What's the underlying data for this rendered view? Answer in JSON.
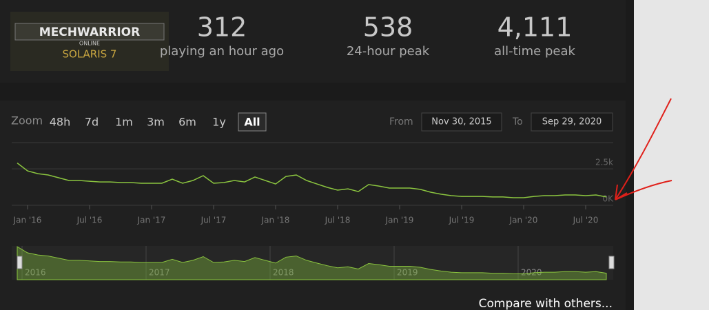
{
  "header": {
    "logo": {
      "line1": "MECHWARRIOR",
      "line2": "ONLINE",
      "line3": "SOLARIS 7"
    },
    "stats": [
      {
        "value": "312",
        "label": "playing an hour ago"
      },
      {
        "value": "538",
        "label": "24-hour peak"
      },
      {
        "value": "4,111",
        "label": "all-time peak"
      }
    ]
  },
  "controls": {
    "zoom_label": "Zoom",
    "zoom_buttons": [
      "48h",
      "7d",
      "1m",
      "3m",
      "6m",
      "1y",
      "All"
    ],
    "selected": "All",
    "from_label": "From",
    "from_date": "Nov 30, 2015",
    "to_label": "To",
    "to_date": "Sep 29, 2020"
  },
  "chart_data": {
    "type": "line",
    "color": "#8bc53f",
    "x": [
      "2015-12",
      "2016-01",
      "2016-02",
      "2016-03",
      "2016-04",
      "2016-05",
      "2016-06",
      "2016-07",
      "2016-08",
      "2016-09",
      "2016-10",
      "2016-11",
      "2016-12",
      "2017-01",
      "2017-02",
      "2017-03",
      "2017-04",
      "2017-05",
      "2017-06",
      "2017-07",
      "2017-08",
      "2017-09",
      "2017-10",
      "2017-11",
      "2017-12",
      "2018-01",
      "2018-02",
      "2018-03",
      "2018-04",
      "2018-05",
      "2018-06",
      "2018-07",
      "2018-08",
      "2018-09",
      "2018-10",
      "2018-11",
      "2018-12",
      "2019-01",
      "2019-02",
      "2019-03",
      "2019-04",
      "2019-05",
      "2019-06",
      "2019-07",
      "2019-08",
      "2019-09",
      "2019-10",
      "2019-11",
      "2019-12",
      "2020-01",
      "2020-02",
      "2020-03",
      "2020-04",
      "2020-05",
      "2020-06",
      "2020-07",
      "2020-08",
      "2020-09"
    ],
    "values": [
      2900,
      2360,
      2170,
      2080,
      1890,
      1700,
      1700,
      1650,
      1600,
      1600,
      1560,
      1560,
      1510,
      1510,
      1510,
      1790,
      1510,
      1700,
      2030,
      1510,
      1560,
      1700,
      1600,
      1940,
      1700,
      1460,
      1980,
      2080,
      1700,
      1460,
      1230,
      1040,
      1130,
      940,
      1420,
      1320,
      1180,
      1180,
      1180,
      1090,
      900,
      760,
      660,
      610,
      610,
      610,
      570,
      570,
      520,
      520,
      610,
      660,
      660,
      710,
      710,
      660,
      710,
      570
    ],
    "xlim": [
      "2015-12",
      "2020-09"
    ],
    "xticks": [
      {
        "value": "2016-01",
        "label": "Jan '16"
      },
      {
        "value": "2016-07",
        "label": "Jul '16"
      },
      {
        "value": "2017-01",
        "label": "Jan '17"
      },
      {
        "value": "2017-07",
        "label": "Jul '17"
      },
      {
        "value": "2018-01",
        "label": "Jan '18"
      },
      {
        "value": "2018-07",
        "label": "Jul '18"
      },
      {
        "value": "2019-01",
        "label": "Jan '19"
      },
      {
        "value": "2019-07",
        "label": "Jul '19"
      },
      {
        "value": "2020-01",
        "label": "Jan '20"
      },
      {
        "value": "2020-07",
        "label": "Jul '20"
      }
    ],
    "ylim": [
      0,
      4300
    ],
    "yticks": [
      {
        "value": 0,
        "label": "0K"
      },
      {
        "value": 2500,
        "label": "2.5k"
      }
    ],
    "navigator_ticks": [
      {
        "value": "2016-01",
        "label": "2016"
      },
      {
        "value": "2017-01",
        "label": "2017"
      },
      {
        "value": "2018-01",
        "label": "2018"
      },
      {
        "value": "2019-01",
        "label": "2019"
      },
      {
        "value": "2020-01",
        "label": "2020"
      }
    ]
  },
  "footer": {
    "link": "Compare with others..."
  }
}
